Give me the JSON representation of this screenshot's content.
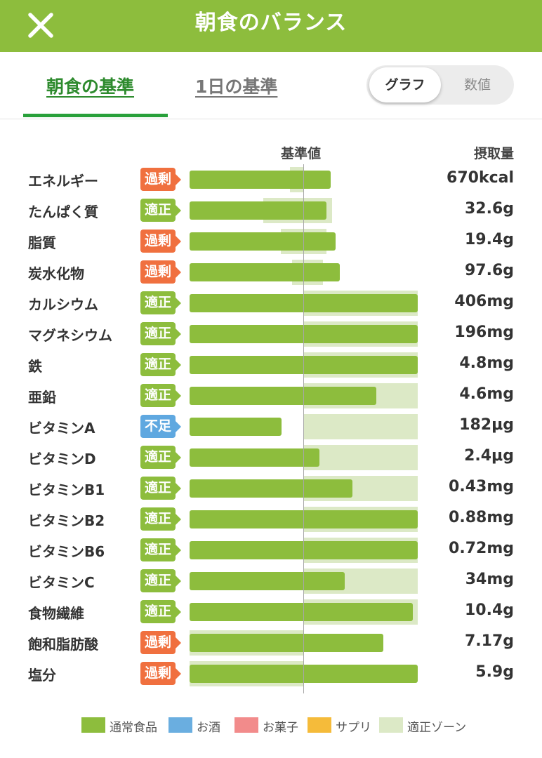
{
  "header": {
    "title": "朝食のバランス",
    "close_icon": "close-icon"
  },
  "tabs": [
    {
      "label": "朝食の基準",
      "active": true
    },
    {
      "label": "1日の基準",
      "active": false
    }
  ],
  "view_toggle": {
    "graph_label": "グラフ",
    "numeric_label": "数値",
    "selected": "グラフ"
  },
  "columns": {
    "reference": "基準値",
    "intake": "摂取量"
  },
  "colors": {
    "header_bg": "#8dbd3d",
    "bar_normal_food": "#8dbd3d",
    "bar_alcohol": "#6aaee0",
    "bar_sweets": "#f28b8b",
    "bar_supplement": "#f5bb3a",
    "optimal_zone": "#dce9c6",
    "status_excess": "#f0703f",
    "status_optimal": "#8dbd3d",
    "status_deficient": "#5fa8e0"
  },
  "chart_data": {
    "type": "bar",
    "orientation": "horizontal",
    "reference_value": 1.0,
    "series": [
      {
        "name": "通常食品",
        "color": "#8dbd3d"
      }
    ],
    "nutrients": [
      {
        "name": "エネルギー",
        "status": "過剰",
        "status_type": "excess",
        "value": "670kcal",
        "ratio": 1.24,
        "zone": [
          0.88,
          1.0
        ]
      },
      {
        "name": "たんぱく質",
        "status": "適正",
        "status_type": "optimal",
        "value": "32.6g",
        "ratio": 1.2,
        "zone": [
          0.65,
          1.25
        ]
      },
      {
        "name": "脂質",
        "status": "過剰",
        "status_type": "excess",
        "value": "19.4g",
        "ratio": 1.28,
        "zone": [
          0.8,
          1.2
        ]
      },
      {
        "name": "炭水化物",
        "status": "過剰",
        "status_type": "excess",
        "value": "97.6g",
        "ratio": 1.32,
        "zone": [
          0.9,
          1.17
        ]
      },
      {
        "name": "カルシウム",
        "status": "適正",
        "status_type": "optimal",
        "value": "406mg",
        "ratio": 2.0,
        "zone": [
          1.0,
          2.0
        ]
      },
      {
        "name": "マグネシウム",
        "status": "適正",
        "status_type": "optimal",
        "value": "196mg",
        "ratio": 2.0,
        "zone": [
          1.0,
          2.0
        ]
      },
      {
        "name": "鉄",
        "status": "適正",
        "status_type": "optimal",
        "value": "4.8mg",
        "ratio": 2.0,
        "zone": [
          1.0,
          2.0
        ]
      },
      {
        "name": "亜鉛",
        "status": "適正",
        "status_type": "optimal",
        "value": "4.6mg",
        "ratio": 1.64,
        "zone": [
          1.0,
          2.0
        ]
      },
      {
        "name": "ビタミンA",
        "status": "不足",
        "status_type": "deficient",
        "value": "182μg",
        "ratio": 0.81,
        "zone": [
          1.0,
          2.0
        ]
      },
      {
        "name": "ビタミンD",
        "status": "適正",
        "status_type": "optimal",
        "value": "2.4μg",
        "ratio": 1.14,
        "zone": [
          1.0,
          2.0
        ]
      },
      {
        "name": "ビタミンB1",
        "status": "適正",
        "status_type": "optimal",
        "value": "0.43mg",
        "ratio": 1.43,
        "zone": [
          1.0,
          2.0
        ]
      },
      {
        "name": "ビタミンB2",
        "status": "適正",
        "status_type": "optimal",
        "value": "0.88mg",
        "ratio": 2.0,
        "zone": [
          1.0,
          2.0
        ]
      },
      {
        "name": "ビタミンB6",
        "status": "適正",
        "status_type": "optimal",
        "value": "0.72mg",
        "ratio": 2.0,
        "zone": [
          1.0,
          2.0
        ]
      },
      {
        "name": "ビタミンC",
        "status": "適正",
        "status_type": "optimal",
        "value": "34mg",
        "ratio": 1.36,
        "zone": [
          1.0,
          2.0
        ]
      },
      {
        "name": "食物繊維",
        "status": "適正",
        "status_type": "optimal",
        "value": "10.4g",
        "ratio": 1.96,
        "zone": [
          1.0,
          2.0
        ]
      },
      {
        "name": "飽和脂肪酸",
        "status": "過剰",
        "status_type": "excess",
        "value": "7.17g",
        "ratio": 1.7,
        "zone": [
          0.0,
          1.0
        ]
      },
      {
        "name": "塩分",
        "status": "過剰",
        "status_type": "excess",
        "value": "5.9g",
        "ratio": 2.0,
        "zone": [
          0.0,
          1.0
        ]
      }
    ]
  },
  "legend": [
    {
      "label": "通常食品",
      "color": "#8dbd3d"
    },
    {
      "label": "お酒",
      "color": "#6aaee0"
    },
    {
      "label": "お菓子",
      "color": "#f28b8b"
    },
    {
      "label": "サプリ",
      "color": "#f5bb3a"
    },
    {
      "label": "適正ゾーン",
      "color": "#dce9c6"
    }
  ]
}
